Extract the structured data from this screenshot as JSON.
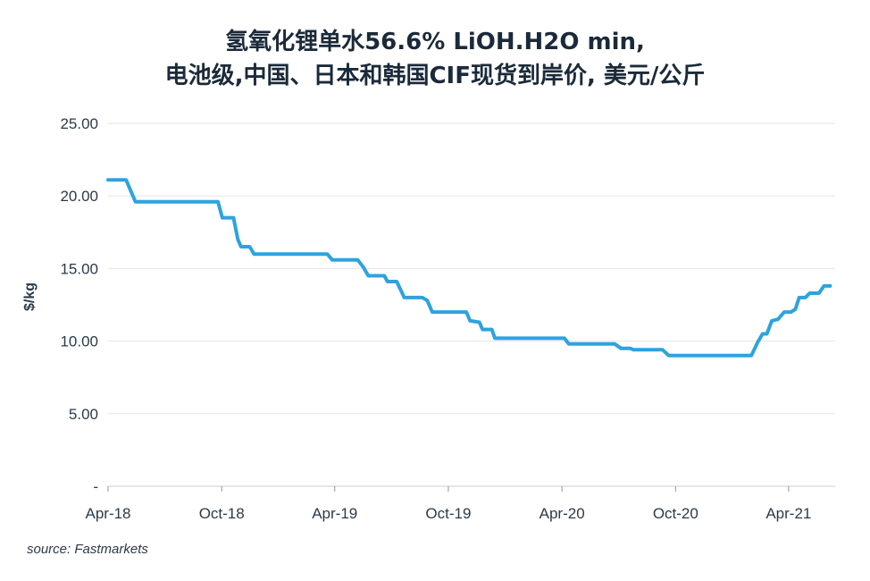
{
  "chart_data": {
    "type": "line",
    "title_line1": "氢氧化锂单水56.6% LiOH.H2O min,",
    "title_line2": "电池级,中国、日本和韩国CIF现货到岸价, 美元/公斤",
    "ylabel": "$/kg",
    "source": "source: Fastmarkets",
    "ylim": [
      0,
      25
    ],
    "yticks": [
      {
        "value": 0,
        "label": "-"
      },
      {
        "value": 5,
        "label": "5.00"
      },
      {
        "value": 10,
        "label": "10.00"
      },
      {
        "value": 15,
        "label": "15.00"
      },
      {
        "value": 20,
        "label": "20.00"
      },
      {
        "value": 25,
        "label": "25.00"
      }
    ],
    "xlim": [
      "2018-04-01",
      "2021-06-15"
    ],
    "xticks": [
      {
        "date": "2018-04-01",
        "label": "Apr-18"
      },
      {
        "date": "2018-10-01",
        "label": "Oct-18"
      },
      {
        "date": "2019-04-01",
        "label": "Apr-19"
      },
      {
        "date": "2019-10-01",
        "label": "Oct-19"
      },
      {
        "date": "2020-04-01",
        "label": "Apr-20"
      },
      {
        "date": "2020-10-01",
        "label": "Oct-20"
      },
      {
        "date": "2021-04-01",
        "label": "Apr-21"
      }
    ],
    "grid": true,
    "color": "#2ea3dd",
    "series": [
      {
        "points": [
          [
            "2018-04-01",
            21.1
          ],
          [
            "2018-04-30",
            21.1
          ],
          [
            "2018-05-15",
            19.6
          ],
          [
            "2018-09-25",
            19.6
          ],
          [
            "2018-10-02",
            18.5
          ],
          [
            "2018-10-20",
            18.5
          ],
          [
            "2018-10-27",
            17.0
          ],
          [
            "2018-11-01",
            16.5
          ],
          [
            "2018-11-15",
            16.5
          ],
          [
            "2018-11-22",
            16.0
          ],
          [
            "2019-03-20",
            16.0
          ],
          [
            "2019-03-28",
            15.6
          ],
          [
            "2019-05-08",
            15.6
          ],
          [
            "2019-05-17",
            15.1
          ],
          [
            "2019-05-25",
            14.5
          ],
          [
            "2019-06-20",
            14.5
          ],
          [
            "2019-06-25",
            14.1
          ],
          [
            "2019-07-10",
            14.1
          ],
          [
            "2019-07-22",
            13.0
          ],
          [
            "2019-08-20",
            13.0
          ],
          [
            "2019-08-28",
            12.8
          ],
          [
            "2019-09-05",
            12.0
          ],
          [
            "2019-10-30",
            12.0
          ],
          [
            "2019-11-05",
            11.4
          ],
          [
            "2019-11-20",
            11.3
          ],
          [
            "2019-11-25",
            10.8
          ],
          [
            "2019-12-10",
            10.8
          ],
          [
            "2019-12-15",
            10.2
          ],
          [
            "2020-04-05",
            10.2
          ],
          [
            "2020-04-12",
            9.8
          ],
          [
            "2020-06-25",
            9.8
          ],
          [
            "2020-07-05",
            9.5
          ],
          [
            "2020-07-20",
            9.5
          ],
          [
            "2020-07-25",
            9.4
          ],
          [
            "2020-09-10",
            9.4
          ],
          [
            "2020-09-20",
            9.0
          ],
          [
            "2021-01-31",
            9.0
          ],
          [
            "2021-02-10",
            9.9
          ],
          [
            "2021-02-18",
            10.5
          ],
          [
            "2021-02-25",
            10.5
          ],
          [
            "2021-03-05",
            11.4
          ],
          [
            "2021-03-15",
            11.5
          ],
          [
            "2021-03-25",
            12.0
          ],
          [
            "2021-04-05",
            12.0
          ],
          [
            "2021-04-12",
            12.2
          ],
          [
            "2021-04-18",
            13.0
          ],
          [
            "2021-04-28",
            13.0
          ],
          [
            "2021-05-05",
            13.3
          ],
          [
            "2021-05-20",
            13.3
          ],
          [
            "2021-05-28",
            13.8
          ],
          [
            "2021-06-07",
            13.8
          ]
        ]
      }
    ]
  }
}
